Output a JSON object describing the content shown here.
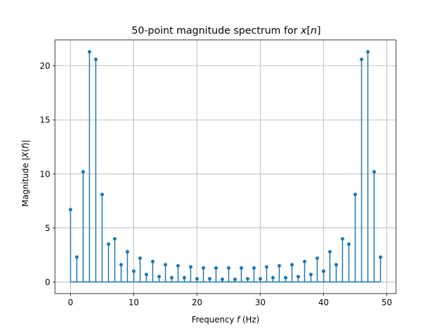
{
  "chart_data": {
    "type": "stem",
    "title": "50-point magnitude spectrum for x[n]",
    "title_parts": {
      "prefix": "50-point magnitude spectrum for ",
      "var": "x",
      "open": "[",
      "index": "n",
      "close": "]"
    },
    "xlabel": "Frequency f (Hz)",
    "xlabel_parts": {
      "prefix": "Frequency ",
      "var": "f",
      "suffix": " (Hz)"
    },
    "ylabel": "Magnitude |X(f)|",
    "ylabel_parts": {
      "prefix": "Magnitude |",
      "var": "X",
      "open": "(",
      "arg": "f",
      "close": ")|"
    },
    "xlim": [
      -2.45,
      51.45
    ],
    "ylim": [
      -1.07,
      22.4
    ],
    "xticks": [
      0,
      10,
      20,
      30,
      40,
      50
    ],
    "yticks": [
      0,
      5,
      10,
      15,
      20
    ],
    "grid": true,
    "color": "#1f77b4",
    "x": [
      0,
      1,
      2,
      3,
      4,
      5,
      6,
      7,
      8,
      9,
      10,
      11,
      12,
      13,
      14,
      15,
      16,
      17,
      18,
      19,
      20,
      21,
      22,
      23,
      24,
      25,
      26,
      27,
      28,
      29,
      30,
      31,
      32,
      33,
      34,
      35,
      36,
      37,
      38,
      39,
      40,
      41,
      42,
      43,
      44,
      45,
      46,
      47,
      48,
      49
    ],
    "values": [
      6.7,
      2.3,
      10.2,
      21.3,
      20.6,
      8.1,
      3.5,
      4.0,
      1.6,
      2.8,
      1.0,
      2.2,
      0.7,
      1.9,
      0.5,
      1.6,
      0.4,
      1.5,
      0.4,
      1.4,
      0.3,
      1.3,
      0.3,
      1.3,
      0.25,
      1.3,
      0.25,
      1.3,
      0.3,
      1.3,
      0.3,
      1.4,
      0.4,
      1.5,
      0.4,
      1.6,
      0.5,
      1.9,
      0.7,
      2.2,
      1.0,
      2.8,
      1.6,
      4.0,
      3.5,
      8.1,
      20.6,
      21.3,
      10.2,
      2.3
    ]
  }
}
